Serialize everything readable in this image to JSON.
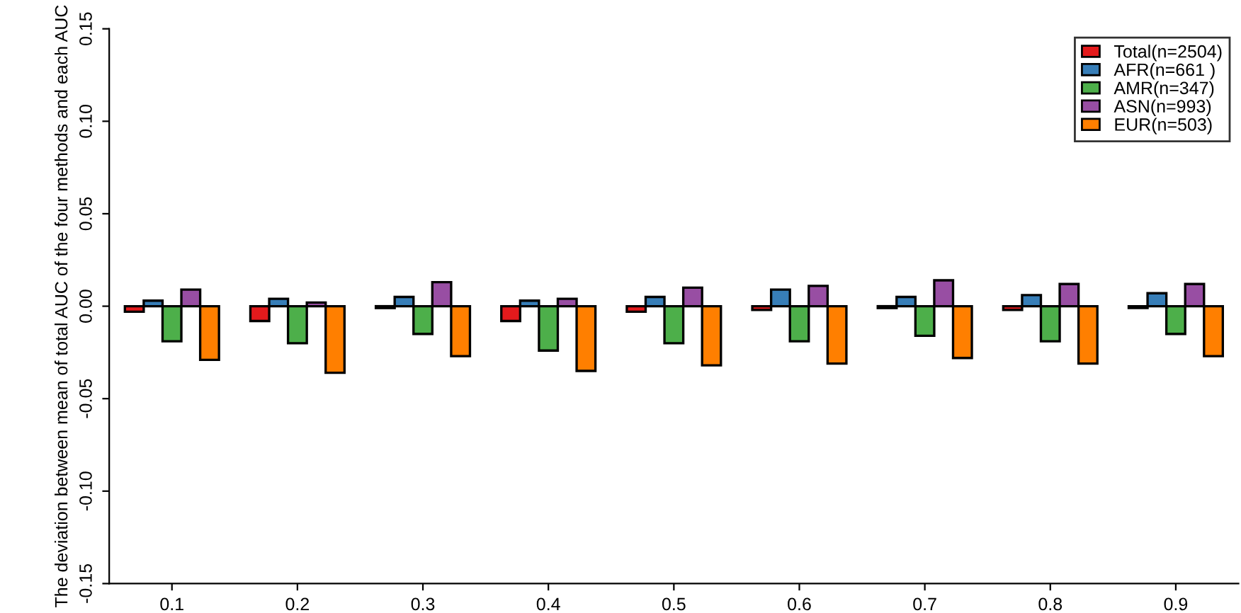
{
  "chart_data": {
    "type": "bar",
    "ylabel": "The deviation between mean of total AUC of the four methods and each AUC",
    "categories": [
      "0.1",
      "0.2",
      "0.3",
      "0.4",
      "0.5",
      "0.6",
      "0.7",
      "0.8",
      "0.9"
    ],
    "series": [
      {
        "name": "Total(n=2504)",
        "color": "#e41a1c",
        "values": [
          -0.003,
          -0.008,
          -0.001,
          -0.008,
          -0.003,
          -0.002,
          -0.001,
          -0.002,
          -0.001
        ]
      },
      {
        "name": "AFR(n=661 )",
        "color": "#377eb8",
        "values": [
          0.003,
          0.004,
          0.005,
          0.003,
          0.005,
          0.009,
          0.005,
          0.006,
          0.007
        ]
      },
      {
        "name": "AMR(n=347)",
        "color": "#4daf4a",
        "values": [
          -0.019,
          -0.02,
          -0.015,
          -0.024,
          -0.02,
          -0.019,
          -0.016,
          -0.019,
          -0.015
        ]
      },
      {
        "name": "ASN(n=993)",
        "color": "#984ea3",
        "values": [
          0.009,
          0.002,
          0.013,
          0.004,
          0.01,
          0.011,
          0.014,
          0.012,
          0.012
        ]
      },
      {
        "name": "EUR(n=503)",
        "color": "#ff7f00",
        "values": [
          -0.029,
          -0.036,
          -0.027,
          -0.035,
          -0.032,
          -0.031,
          -0.028,
          -0.031,
          -0.027
        ]
      }
    ],
    "ylim": [
      -0.15,
      0.15
    ],
    "yticks": [
      {
        "value": -0.15,
        "label": "-0.15"
      },
      {
        "value": -0.1,
        "label": "-0.10"
      },
      {
        "value": -0.05,
        "label": "-0.05"
      },
      {
        "value": 0,
        "label": "0.00"
      },
      {
        "value": 0.05,
        "label": "0.05"
      },
      {
        "value": 0.1,
        "label": "0.10"
      },
      {
        "value": 0.15,
        "label": "0.15"
      }
    ],
    "legend": "top right",
    "grid": false
  }
}
